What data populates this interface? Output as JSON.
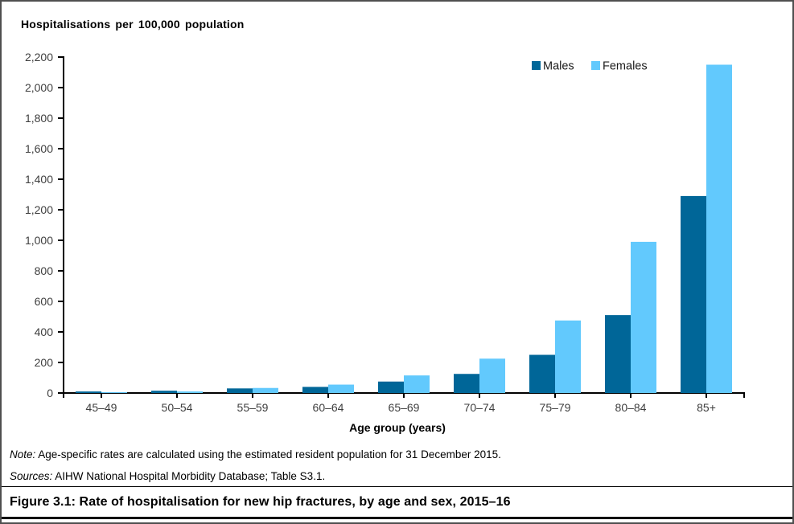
{
  "figure": {
    "chart_title": "Hospitalisations per 100,000 population",
    "note_label": "Note:",
    "note_text": " Age-specific rates are calculated using the estimated resident population for 31 December 2015.",
    "sources_label": "Sources:",
    "sources_text": " AIHW National Hospital Morbidity Database; Table S3.1.",
    "caption": "Figure 3.1: Rate of hospitalisation for new hip fractures, by age and sex, 2015–16"
  },
  "colors": {
    "males": "#006698",
    "females": "#62C9FD",
    "axis": "#000000",
    "tick_label": "#3f3f3f"
  },
  "chart_data": {
    "type": "bar",
    "title": "Hospitalisations per 100,000 population",
    "categories": [
      "45–49",
      "50–54",
      "55–59",
      "60–64",
      "65–69",
      "70–74",
      "75–79",
      "80–84",
      "85+"
    ],
    "series": [
      {
        "name": "Males",
        "color": "#006698",
        "values": [
          10,
          15,
          30,
          40,
          75,
          125,
          250,
          510,
          1290
        ]
      },
      {
        "name": "Females",
        "color": "#62C9FD",
        "values": [
          5,
          10,
          33,
          55,
          115,
          225,
          475,
          990,
          2150
        ]
      }
    ],
    "xlabel": "Age group (years)",
    "ylabel": "Hospitalisations per 100,000 population",
    "ylim": [
      0,
      2200
    ],
    "ytick_step": 200,
    "grid": false,
    "legend_position": "top-right"
  }
}
